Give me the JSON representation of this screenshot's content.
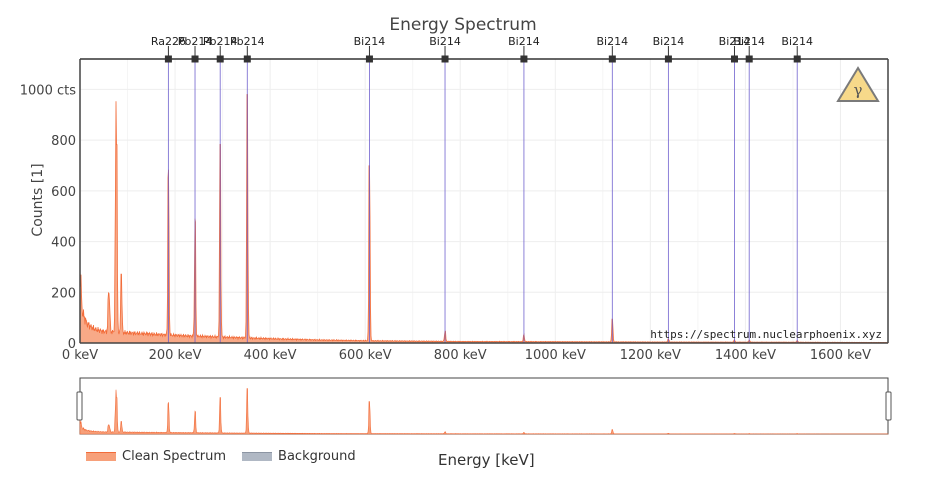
{
  "chart_data": {
    "type": "area",
    "title": "Energy Spectrum",
    "xlabel": "Energy [keV]",
    "ylabel": "Counts [1]",
    "xlim": [
      0,
      1700
    ],
    "ylim": [
      0,
      1120
    ],
    "x_ticks": [
      0,
      200,
      400,
      600,
      800,
      1000,
      1200,
      1400,
      1600
    ],
    "x_tick_labels": [
      "0 keV",
      "200 keV",
      "400 keV",
      "600 keV",
      "800 keV",
      "1000 keV",
      "1200 keV",
      "1400 keV",
      "1600 keV"
    ],
    "y_ticks": [
      0,
      200,
      400,
      600,
      800,
      1000
    ],
    "y_tick_labels": [
      "0",
      "200",
      "400",
      "600",
      "800",
      "1000 cts"
    ],
    "grid": true,
    "legend_position": "bottom-left",
    "continuum": [
      [
        0,
        300
      ],
      [
        5,
        120
      ],
      [
        15,
        75
      ],
      [
        30,
        55
      ],
      [
        50,
        45
      ],
      [
        80,
        42
      ],
      [
        120,
        38
      ],
      [
        200,
        30
      ],
      [
        300,
        23
      ],
      [
        400,
        17
      ],
      [
        500,
        12
      ],
      [
        600,
        9
      ],
      [
        800,
        6
      ],
      [
        1000,
        5
      ],
      [
        1200,
        4
      ],
      [
        1500,
        3
      ],
      [
        1700,
        2
      ]
    ],
    "peaks": [
      {
        "energy": 60,
        "counts": 140
      },
      {
        "energy": 62,
        "counts": 100
      },
      {
        "energy": 75,
        "counts": 500
      },
      {
        "energy": 77,
        "counts": 740
      },
      {
        "energy": 87,
        "counts": 230
      },
      {
        "energy": 186,
        "counts": 620
      },
      {
        "energy": 242,
        "counts": 450
      },
      {
        "energy": 295,
        "counts": 760
      },
      {
        "energy": 352,
        "counts": 960
      },
      {
        "energy": 609,
        "counts": 690
      },
      {
        "energy": 768,
        "counts": 40
      },
      {
        "energy": 934,
        "counts": 25
      },
      {
        "energy": 1120,
        "counts": 90
      },
      {
        "energy": 1238,
        "counts": 12
      },
      {
        "energy": 1377,
        "counts": 8
      },
      {
        "energy": 1408,
        "counts": 8
      },
      {
        "energy": 1509,
        "counts": 6
      }
    ],
    "annotations": [
      {
        "label": "Ra226",
        "energy": 186
      },
      {
        "label": "Pb214",
        "energy": 242
      },
      {
        "label": "Pb214",
        "energy": 295
      },
      {
        "label": "Pb214",
        "energy": 352
      },
      {
        "label": "Bi214",
        "energy": 609
      },
      {
        "label": "Bi214",
        "energy": 768
      },
      {
        "label": "Bi214",
        "energy": 934
      },
      {
        "label": "Bi214",
        "energy": 1120
      },
      {
        "label": "Bi214",
        "energy": 1238
      },
      {
        "label": "Bi214",
        "energy": 1377
      },
      {
        "label": "Bi214",
        "energy": 1408
      },
      {
        "label": "Bi214",
        "energy": 1509
      }
    ],
    "series": [
      {
        "name": "Clean Spectrum",
        "color": "#f26c3a"
      },
      {
        "name": "Background",
        "color": "#b0b8c4"
      }
    ],
    "watermark": "https://spectrum.nuclearphoenix.xyz",
    "badge_symbol": "γ"
  },
  "colors": {
    "spectrum_fill": "#f26c3a",
    "annotation_line": "#6a5acd",
    "badge_fill": "#f7d98a"
  }
}
